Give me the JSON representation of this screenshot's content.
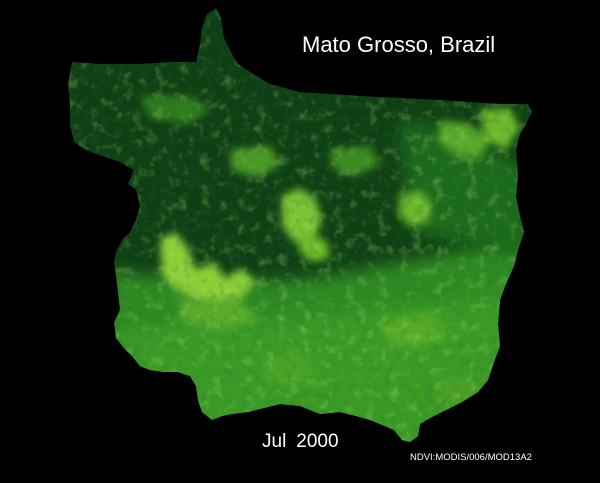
{
  "title": "Mato Grosso, Brazil",
  "date": {
    "month": "Jul",
    "year": "2000"
  },
  "source": "NDVI:MODIS/006/MOD13A2",
  "colors": {
    "background": "#000000",
    "dense_forest": "#0d3a12",
    "vegetation_mid": "#2a7a1d",
    "vegetation_bright": "#6fbf2a",
    "vegetation_light": "#a9d64a",
    "text": "#ffffff"
  }
}
